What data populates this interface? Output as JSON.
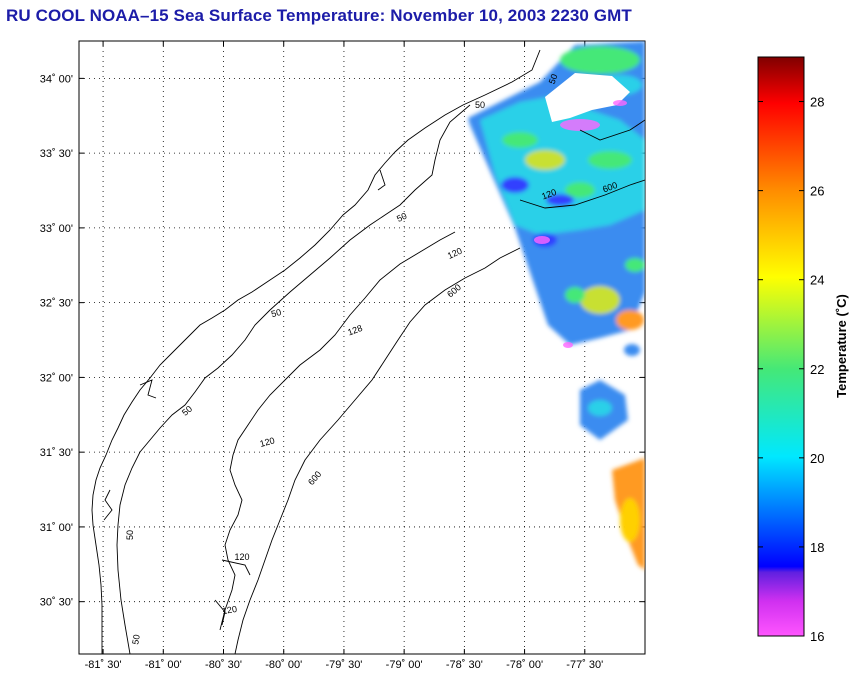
{
  "title": "RU COOL  NOAA–15  Sea Surface Temperature:  November 10, 2003 2230 GMT",
  "map": {
    "lon_range": [
      -81.7,
      -77.0
    ],
    "lat_range": [
      30.15,
      34.25
    ],
    "lat_ticks": [
      "34˚ 00'",
      "33˚ 30'",
      "33˚ 00'",
      "32˚ 30'",
      "32˚ 00'",
      "31˚ 30'",
      "31˚ 00'",
      "30˚ 30'"
    ],
    "lon_ticks": [
      "-81˚ 30'",
      "-81˚ 00'",
      "-80˚ 30'",
      "-80˚ 00'",
      "-79˚ 30'",
      "-79˚ 00'",
      "-78˚ 30'",
      "-78˚ 00'",
      "-77˚ 30'"
    ],
    "grid": "dotted",
    "contour_labels": [
      "50",
      "50",
      "120",
      "600",
      "50",
      "120",
      "50",
      "128",
      "600",
      "50",
      "120",
      "600",
      "50",
      "120",
      "120",
      "50"
    ]
  },
  "colorbar": {
    "label": "Temperature (˚C)",
    "range": [
      16,
      29
    ],
    "ticks": [
      "16",
      "18",
      "20",
      "22",
      "24",
      "26",
      "28"
    ],
    "colors": {
      "16": "#ff00ff",
      "17": "#8a2be2",
      "17.5": "#0000ff",
      "20": "#00e8ff",
      "22": "#44e878",
      "24": "#ffff00",
      "26": "#ff8c00",
      "28": "#ff0000",
      "29": "#800000"
    }
  }
}
